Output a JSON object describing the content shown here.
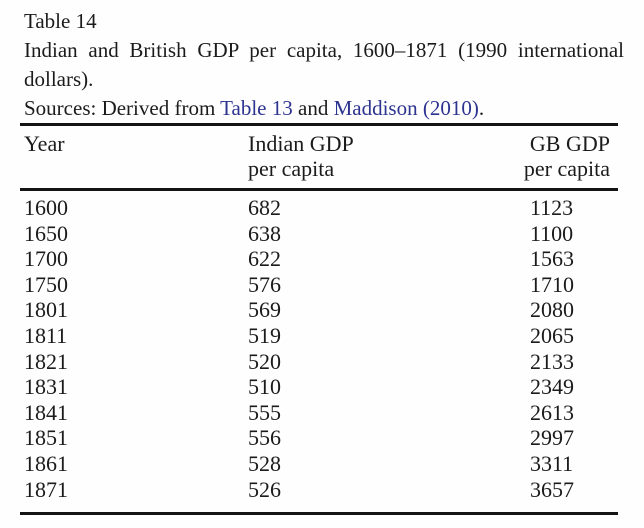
{
  "colors": {
    "background": "#fefefe",
    "text": "#1b1b1b",
    "rule": "#141414",
    "link": "#2c3490"
  },
  "caption": {
    "table_label": "Table 14",
    "title_line1": "Indian and British GDP per capita, 1600–1871 (1990 international",
    "title_line2": "dollars).",
    "sources": {
      "prefix": "Sources: Derived from ",
      "link_table13": "Table 13",
      "connector": " and ",
      "link_maddison": "Maddison (2010)",
      "suffix": "."
    }
  },
  "table": {
    "columns": [
      {
        "line1": "Year",
        "line2": ""
      },
      {
        "line1": "Indian GDP",
        "line2": "per capita"
      },
      {
        "line1": "GB GDP",
        "line2": "per capita"
      }
    ],
    "rows": [
      {
        "year": "1600",
        "indian_gdp": "682",
        "gb_gdp": "1123"
      },
      {
        "year": "1650",
        "indian_gdp": "638",
        "gb_gdp": "1100"
      },
      {
        "year": "1700",
        "indian_gdp": "622",
        "gb_gdp": "1563"
      },
      {
        "year": "1750",
        "indian_gdp": "576",
        "gb_gdp": "1710"
      },
      {
        "year": "1801",
        "indian_gdp": "569",
        "gb_gdp": "2080"
      },
      {
        "year": "1811",
        "indian_gdp": "519",
        "gb_gdp": "2065"
      },
      {
        "year": "1821",
        "indian_gdp": "520",
        "gb_gdp": "2133"
      },
      {
        "year": "1831",
        "indian_gdp": "510",
        "gb_gdp": "2349"
      },
      {
        "year": "1841",
        "indian_gdp": "555",
        "gb_gdp": "2613"
      },
      {
        "year": "1851",
        "indian_gdp": "556",
        "gb_gdp": "2997"
      },
      {
        "year": "1861",
        "indian_gdp": "528",
        "gb_gdp": "3311"
      },
      {
        "year": "1871",
        "indian_gdp": "526",
        "gb_gdp": "3657"
      }
    ]
  }
}
